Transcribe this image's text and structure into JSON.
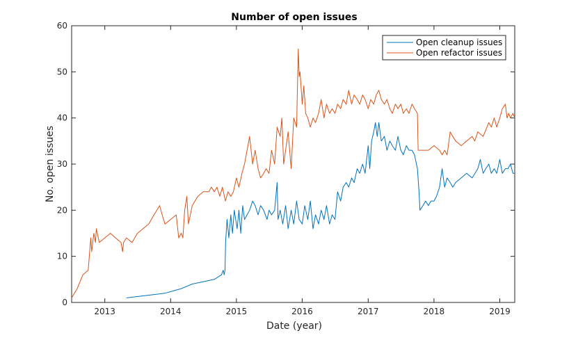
{
  "chart_data": {
    "type": "line",
    "title": "Number of open issues",
    "xlabel": "Date (year)",
    "ylabel": "No. open issues",
    "xlim": [
      "2012-07-01",
      "2019-03-25"
    ],
    "ylim": [
      0,
      60
    ],
    "xticks": [
      "2013",
      "2014",
      "2015",
      "2016",
      "2017",
      "2018",
      "2019"
    ],
    "yticks": [
      0,
      10,
      20,
      30,
      40,
      50,
      60
    ],
    "grid": false,
    "legend_position": "top-right",
    "series": [
      {
        "name": "Open cleanup issues",
        "color": "#0072BD",
        "points": [
          [
            "2013-05-01",
            1
          ],
          [
            "2013-12-01",
            2
          ],
          [
            "2014-03-01",
            3
          ],
          [
            "2014-05-01",
            4
          ],
          [
            "2014-09-01",
            5
          ],
          [
            "2014-10-10",
            6
          ],
          [
            "2014-10-20",
            7
          ],
          [
            "2014-10-25",
            6
          ],
          [
            "2014-10-30",
            7
          ],
          [
            "2014-11-02",
            13
          ],
          [
            "2014-11-10",
            18
          ],
          [
            "2014-11-20",
            14
          ],
          [
            "2014-12-01",
            19
          ],
          [
            "2014-12-10",
            15
          ],
          [
            "2014-12-20",
            20
          ],
          [
            "2015-01-05",
            16
          ],
          [
            "2015-01-15",
            20
          ],
          [
            "2015-01-25",
            15
          ],
          [
            "2015-02-05",
            21
          ],
          [
            "2015-02-15",
            18
          ],
          [
            "2015-03-01",
            19
          ],
          [
            "2015-03-15",
            20
          ],
          [
            "2015-04-01",
            22
          ],
          [
            "2015-04-15",
            21
          ],
          [
            "2015-05-01",
            19
          ],
          [
            "2015-05-15",
            21
          ],
          [
            "2015-06-01",
            20
          ],
          [
            "2015-06-20",
            18
          ],
          [
            "2015-07-01",
            20
          ],
          [
            "2015-07-15",
            19
          ],
          [
            "2015-08-01",
            20
          ],
          [
            "2015-08-15",
            26
          ],
          [
            "2015-08-20",
            18
          ],
          [
            "2015-09-01",
            20
          ],
          [
            "2015-09-15",
            17
          ],
          [
            "2015-10-01",
            21
          ],
          [
            "2015-10-15",
            16
          ],
          [
            "2015-11-01",
            20
          ],
          [
            "2015-11-15",
            17
          ],
          [
            "2015-12-01",
            22
          ],
          [
            "2015-12-15",
            18
          ],
          [
            "2016-01-01",
            17
          ],
          [
            "2016-01-15",
            21
          ],
          [
            "2016-02-01",
            18
          ],
          [
            "2016-02-15",
            22
          ],
          [
            "2016-03-01",
            16
          ],
          [
            "2016-03-15",
            19
          ],
          [
            "2016-04-01",
            17
          ],
          [
            "2016-04-15",
            20
          ],
          [
            "2016-05-01",
            18
          ],
          [
            "2016-05-15",
            21
          ],
          [
            "2016-06-01",
            17
          ],
          [
            "2016-06-15",
            19
          ],
          [
            "2016-07-01",
            18
          ],
          [
            "2016-07-15",
            24
          ],
          [
            "2016-08-01",
            22
          ],
          [
            "2016-08-15",
            25
          ],
          [
            "2016-09-01",
            26
          ],
          [
            "2016-09-15",
            25
          ],
          [
            "2016-10-01",
            27
          ],
          [
            "2016-10-15",
            26
          ],
          [
            "2016-11-01",
            29
          ],
          [
            "2016-11-15",
            28
          ],
          [
            "2016-12-01",
            30
          ],
          [
            "2016-12-15",
            28
          ],
          [
            "2017-01-01",
            34
          ],
          [
            "2017-01-10",
            29
          ],
          [
            "2017-01-20",
            35
          ],
          [
            "2017-02-01",
            37
          ],
          [
            "2017-02-10",
            39
          ],
          [
            "2017-02-20",
            36
          ],
          [
            "2017-03-01",
            39
          ],
          [
            "2017-03-15",
            35
          ],
          [
            "2017-04-01",
            36
          ],
          [
            "2017-04-15",
            33
          ],
          [
            "2017-05-01",
            35
          ],
          [
            "2017-05-15",
            34
          ],
          [
            "2017-06-01",
            33
          ],
          [
            "2017-06-15",
            36
          ],
          [
            "2017-07-01",
            33
          ],
          [
            "2017-07-15",
            32
          ],
          [
            "2017-08-01",
            34
          ],
          [
            "2017-08-15",
            33
          ],
          [
            "2017-09-01",
            33
          ],
          [
            "2017-09-15",
            32
          ],
          [
            "2017-10-01",
            29
          ],
          [
            "2017-10-10",
            24
          ],
          [
            "2017-10-15",
            20
          ],
          [
            "2017-11-01",
            21
          ],
          [
            "2017-11-15",
            22
          ],
          [
            "2017-12-01",
            21
          ],
          [
            "2017-12-15",
            22
          ],
          [
            "2018-01-01",
            22
          ],
          [
            "2018-01-15",
            23
          ],
          [
            "2018-02-01",
            25
          ],
          [
            "2018-02-15",
            29
          ],
          [
            "2018-03-01",
            25
          ],
          [
            "2018-03-15",
            27
          ],
          [
            "2018-04-01",
            26
          ],
          [
            "2018-04-15",
            25
          ],
          [
            "2018-05-01",
            26
          ],
          [
            "2018-06-01",
            27
          ],
          [
            "2018-07-01",
            28
          ],
          [
            "2018-08-01",
            27
          ],
          [
            "2018-09-01",
            29
          ],
          [
            "2018-09-15",
            31
          ],
          [
            "2018-10-01",
            28
          ],
          [
            "2018-10-15",
            29
          ],
          [
            "2018-11-01",
            30
          ],
          [
            "2018-11-15",
            28
          ],
          [
            "2018-12-01",
            29
          ],
          [
            "2018-12-15",
            28
          ],
          [
            "2019-01-01",
            31
          ],
          [
            "2019-01-15",
            28
          ],
          [
            "2019-02-01",
            29
          ],
          [
            "2019-02-15",
            29
          ],
          [
            "2019-03-01",
            30
          ],
          [
            "2019-03-15",
            28
          ],
          [
            "2019-03-25",
            28
          ]
        ]
      },
      {
        "name": "Open refactor issues",
        "color": "#D95319",
        "points": [
          [
            "2012-07-01",
            1
          ],
          [
            "2012-08-01",
            3
          ],
          [
            "2012-09-01",
            6
          ],
          [
            "2012-10-01",
            7
          ],
          [
            "2012-10-15",
            14
          ],
          [
            "2012-10-20",
            11
          ],
          [
            "2012-11-01",
            15
          ],
          [
            "2012-11-10",
            13
          ],
          [
            "2012-11-15",
            16
          ],
          [
            "2012-12-01",
            13
          ],
          [
            "2013-01-01",
            14
          ],
          [
            "2013-02-01",
            15
          ],
          [
            "2013-03-01",
            14
          ],
          [
            "2013-04-01",
            13
          ],
          [
            "2013-04-10",
            11
          ],
          [
            "2013-04-15",
            13
          ],
          [
            "2013-05-01",
            14
          ],
          [
            "2013-06-01",
            13
          ],
          [
            "2013-07-01",
            15
          ],
          [
            "2013-08-01",
            16
          ],
          [
            "2013-09-01",
            17
          ],
          [
            "2013-10-01",
            19
          ],
          [
            "2013-11-01",
            21
          ],
          [
            "2013-11-15",
            19
          ],
          [
            "2013-12-01",
            17
          ],
          [
            "2014-01-01",
            18
          ],
          [
            "2014-02-01",
            19
          ],
          [
            "2014-02-15",
            14
          ],
          [
            "2014-03-01",
            15
          ],
          [
            "2014-03-10",
            14
          ],
          [
            "2014-03-20",
            20
          ],
          [
            "2014-04-01",
            23
          ],
          [
            "2014-04-10",
            17
          ],
          [
            "2014-05-01",
            21
          ],
          [
            "2014-06-01",
            23
          ],
          [
            "2014-07-01",
            24
          ],
          [
            "2014-08-01",
            24
          ],
          [
            "2014-08-15",
            25
          ],
          [
            "2014-09-01",
            24
          ],
          [
            "2014-09-15",
            25
          ],
          [
            "2014-10-01",
            23
          ],
          [
            "2014-10-15",
            25
          ],
          [
            "2014-11-01",
            22
          ],
          [
            "2014-11-15",
            24
          ],
          [
            "2014-12-01",
            23
          ],
          [
            "2014-12-15",
            24
          ],
          [
            "2015-01-01",
            27
          ],
          [
            "2015-01-15",
            25
          ],
          [
            "2015-02-01",
            28
          ],
          [
            "2015-02-15",
            30
          ],
          [
            "2015-03-01",
            33
          ],
          [
            "2015-03-15",
            36
          ],
          [
            "2015-04-01",
            30
          ],
          [
            "2015-04-15",
            33
          ],
          [
            "2015-05-01",
            29
          ],
          [
            "2015-05-15",
            27
          ],
          [
            "2015-06-01",
            28
          ],
          [
            "2015-06-15",
            29
          ],
          [
            "2015-07-01",
            28
          ],
          [
            "2015-07-15",
            33
          ],
          [
            "2015-08-01",
            30
          ],
          [
            "2015-08-15",
            38
          ],
          [
            "2015-09-01",
            36
          ],
          [
            "2015-09-10",
            40
          ],
          [
            "2015-09-20",
            30
          ],
          [
            "2015-10-01",
            33
          ],
          [
            "2015-10-15",
            37
          ],
          [
            "2015-11-01",
            29
          ],
          [
            "2015-11-15",
            40
          ],
          [
            "2015-12-01",
            38
          ],
          [
            "2015-12-10",
            55
          ],
          [
            "2015-12-15",
            49
          ],
          [
            "2015-12-20",
            50
          ],
          [
            "2016-01-01",
            43
          ],
          [
            "2016-01-10",
            47
          ],
          [
            "2016-01-20",
            41
          ],
          [
            "2016-02-01",
            40
          ],
          [
            "2016-02-15",
            38
          ],
          [
            "2016-03-01",
            40
          ],
          [
            "2016-03-15",
            39
          ],
          [
            "2016-04-01",
            41
          ],
          [
            "2016-04-15",
            44
          ],
          [
            "2016-05-01",
            40
          ],
          [
            "2016-05-15",
            43
          ],
          [
            "2016-06-01",
            41
          ],
          [
            "2016-06-15",
            42
          ],
          [
            "2016-07-01",
            41
          ],
          [
            "2016-07-15",
            43
          ],
          [
            "2016-08-01",
            42
          ],
          [
            "2016-08-15",
            44
          ],
          [
            "2016-09-01",
            43
          ],
          [
            "2016-09-15",
            46
          ],
          [
            "2016-10-01",
            43
          ],
          [
            "2016-10-15",
            45
          ],
          [
            "2016-11-01",
            44
          ],
          [
            "2016-11-15",
            43
          ],
          [
            "2016-12-01",
            45
          ],
          [
            "2016-12-15",
            44
          ],
          [
            "2017-01-01",
            42
          ],
          [
            "2017-01-15",
            44
          ],
          [
            "2017-02-01",
            43
          ],
          [
            "2017-02-15",
            45
          ],
          [
            "2017-03-01",
            46
          ],
          [
            "2017-03-15",
            44
          ],
          [
            "2017-04-01",
            43
          ],
          [
            "2017-04-15",
            44
          ],
          [
            "2017-05-01",
            42
          ],
          [
            "2017-05-15",
            41
          ],
          [
            "2017-06-01",
            43
          ],
          [
            "2017-06-15",
            42
          ],
          [
            "2017-07-01",
            43
          ],
          [
            "2017-07-15",
            41
          ],
          [
            "2017-08-01",
            42
          ],
          [
            "2017-08-15",
            41
          ],
          [
            "2017-09-01",
            43
          ],
          [
            "2017-09-15",
            42
          ],
          [
            "2017-10-01",
            41
          ],
          [
            "2017-10-05",
            33
          ],
          [
            "2017-11-01",
            33
          ],
          [
            "2017-12-01",
            33
          ],
          [
            "2018-01-01",
            34
          ],
          [
            "2018-02-01",
            33
          ],
          [
            "2018-02-15",
            32
          ],
          [
            "2018-03-01",
            33
          ],
          [
            "2018-03-15",
            32
          ],
          [
            "2018-04-01",
            37
          ],
          [
            "2018-04-15",
            36
          ],
          [
            "2018-05-01",
            35
          ],
          [
            "2018-06-01",
            34
          ],
          [
            "2018-07-01",
            35
          ],
          [
            "2018-08-01",
            36
          ],
          [
            "2018-08-15",
            35
          ],
          [
            "2018-09-01",
            37
          ],
          [
            "2018-10-01",
            36
          ],
          [
            "2018-11-01",
            39
          ],
          [
            "2018-11-15",
            38
          ],
          [
            "2018-12-01",
            40
          ],
          [
            "2018-12-15",
            38
          ],
          [
            "2019-01-01",
            40
          ],
          [
            "2019-01-15",
            42
          ],
          [
            "2019-02-01",
            43
          ],
          [
            "2019-02-10",
            40
          ],
          [
            "2019-02-20",
            41
          ],
          [
            "2019-03-01",
            40
          ],
          [
            "2019-03-15",
            41
          ],
          [
            "2019-03-25",
            40
          ]
        ]
      }
    ]
  }
}
